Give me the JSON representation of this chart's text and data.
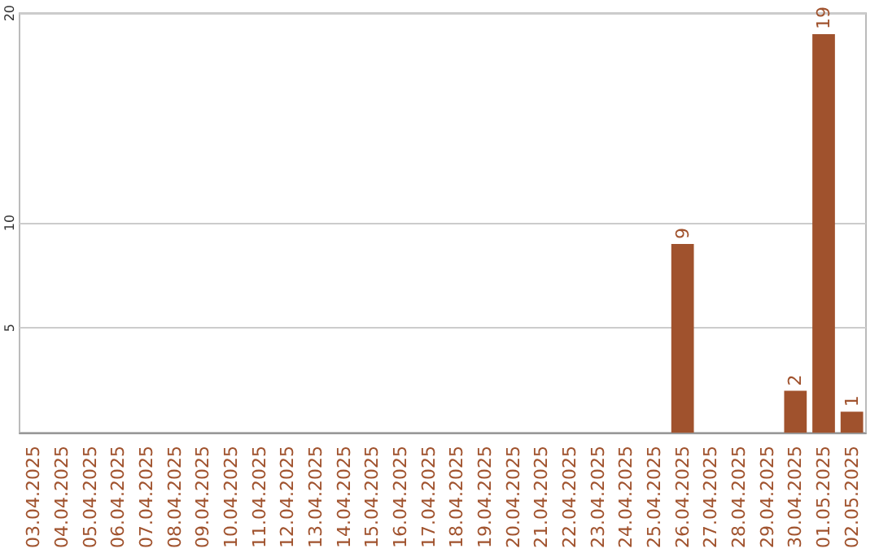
{
  "chart_data": {
    "type": "bar",
    "categories": [
      "03.04.2025",
      "04.04.2025",
      "05.04.2025",
      "06.04.2025",
      "07.04.2025",
      "08.04.2025",
      "09.04.2025",
      "10.04.2025",
      "11.04.2025",
      "12.04.2025",
      "13.04.2025",
      "14.04.2025",
      "15.04.2025",
      "16.04.2025",
      "17.04.2025",
      "18.04.2025",
      "19.04.2025",
      "20.04.2025",
      "21.04.2025",
      "22.04.2025",
      "23.04.2025",
      "24.04.2025",
      "25.04.2025",
      "26.04.2025",
      "27.04.2025",
      "28.04.2025",
      "29.04.2025",
      "30.04.2025",
      "01.05.2025",
      "02.05.2025"
    ],
    "values": [
      0,
      0,
      0,
      0,
      0,
      0,
      0,
      0,
      0,
      0,
      0,
      0,
      0,
      0,
      0,
      0,
      0,
      0,
      0,
      0,
      0,
      0,
      0,
      9,
      0,
      0,
      0,
      2,
      19,
      1
    ],
    "value_labels": [
      null,
      null,
      null,
      null,
      null,
      null,
      null,
      null,
      null,
      null,
      null,
      null,
      null,
      null,
      null,
      null,
      null,
      null,
      null,
      null,
      null,
      null,
      null,
      "9",
      null,
      null,
      null,
      "2",
      "19",
      "1"
    ],
    "color": "#a0522d",
    "ylim": [
      0,
      20
    ],
    "yticks": [
      5,
      10,
      20
    ],
    "grid": "y"
  }
}
